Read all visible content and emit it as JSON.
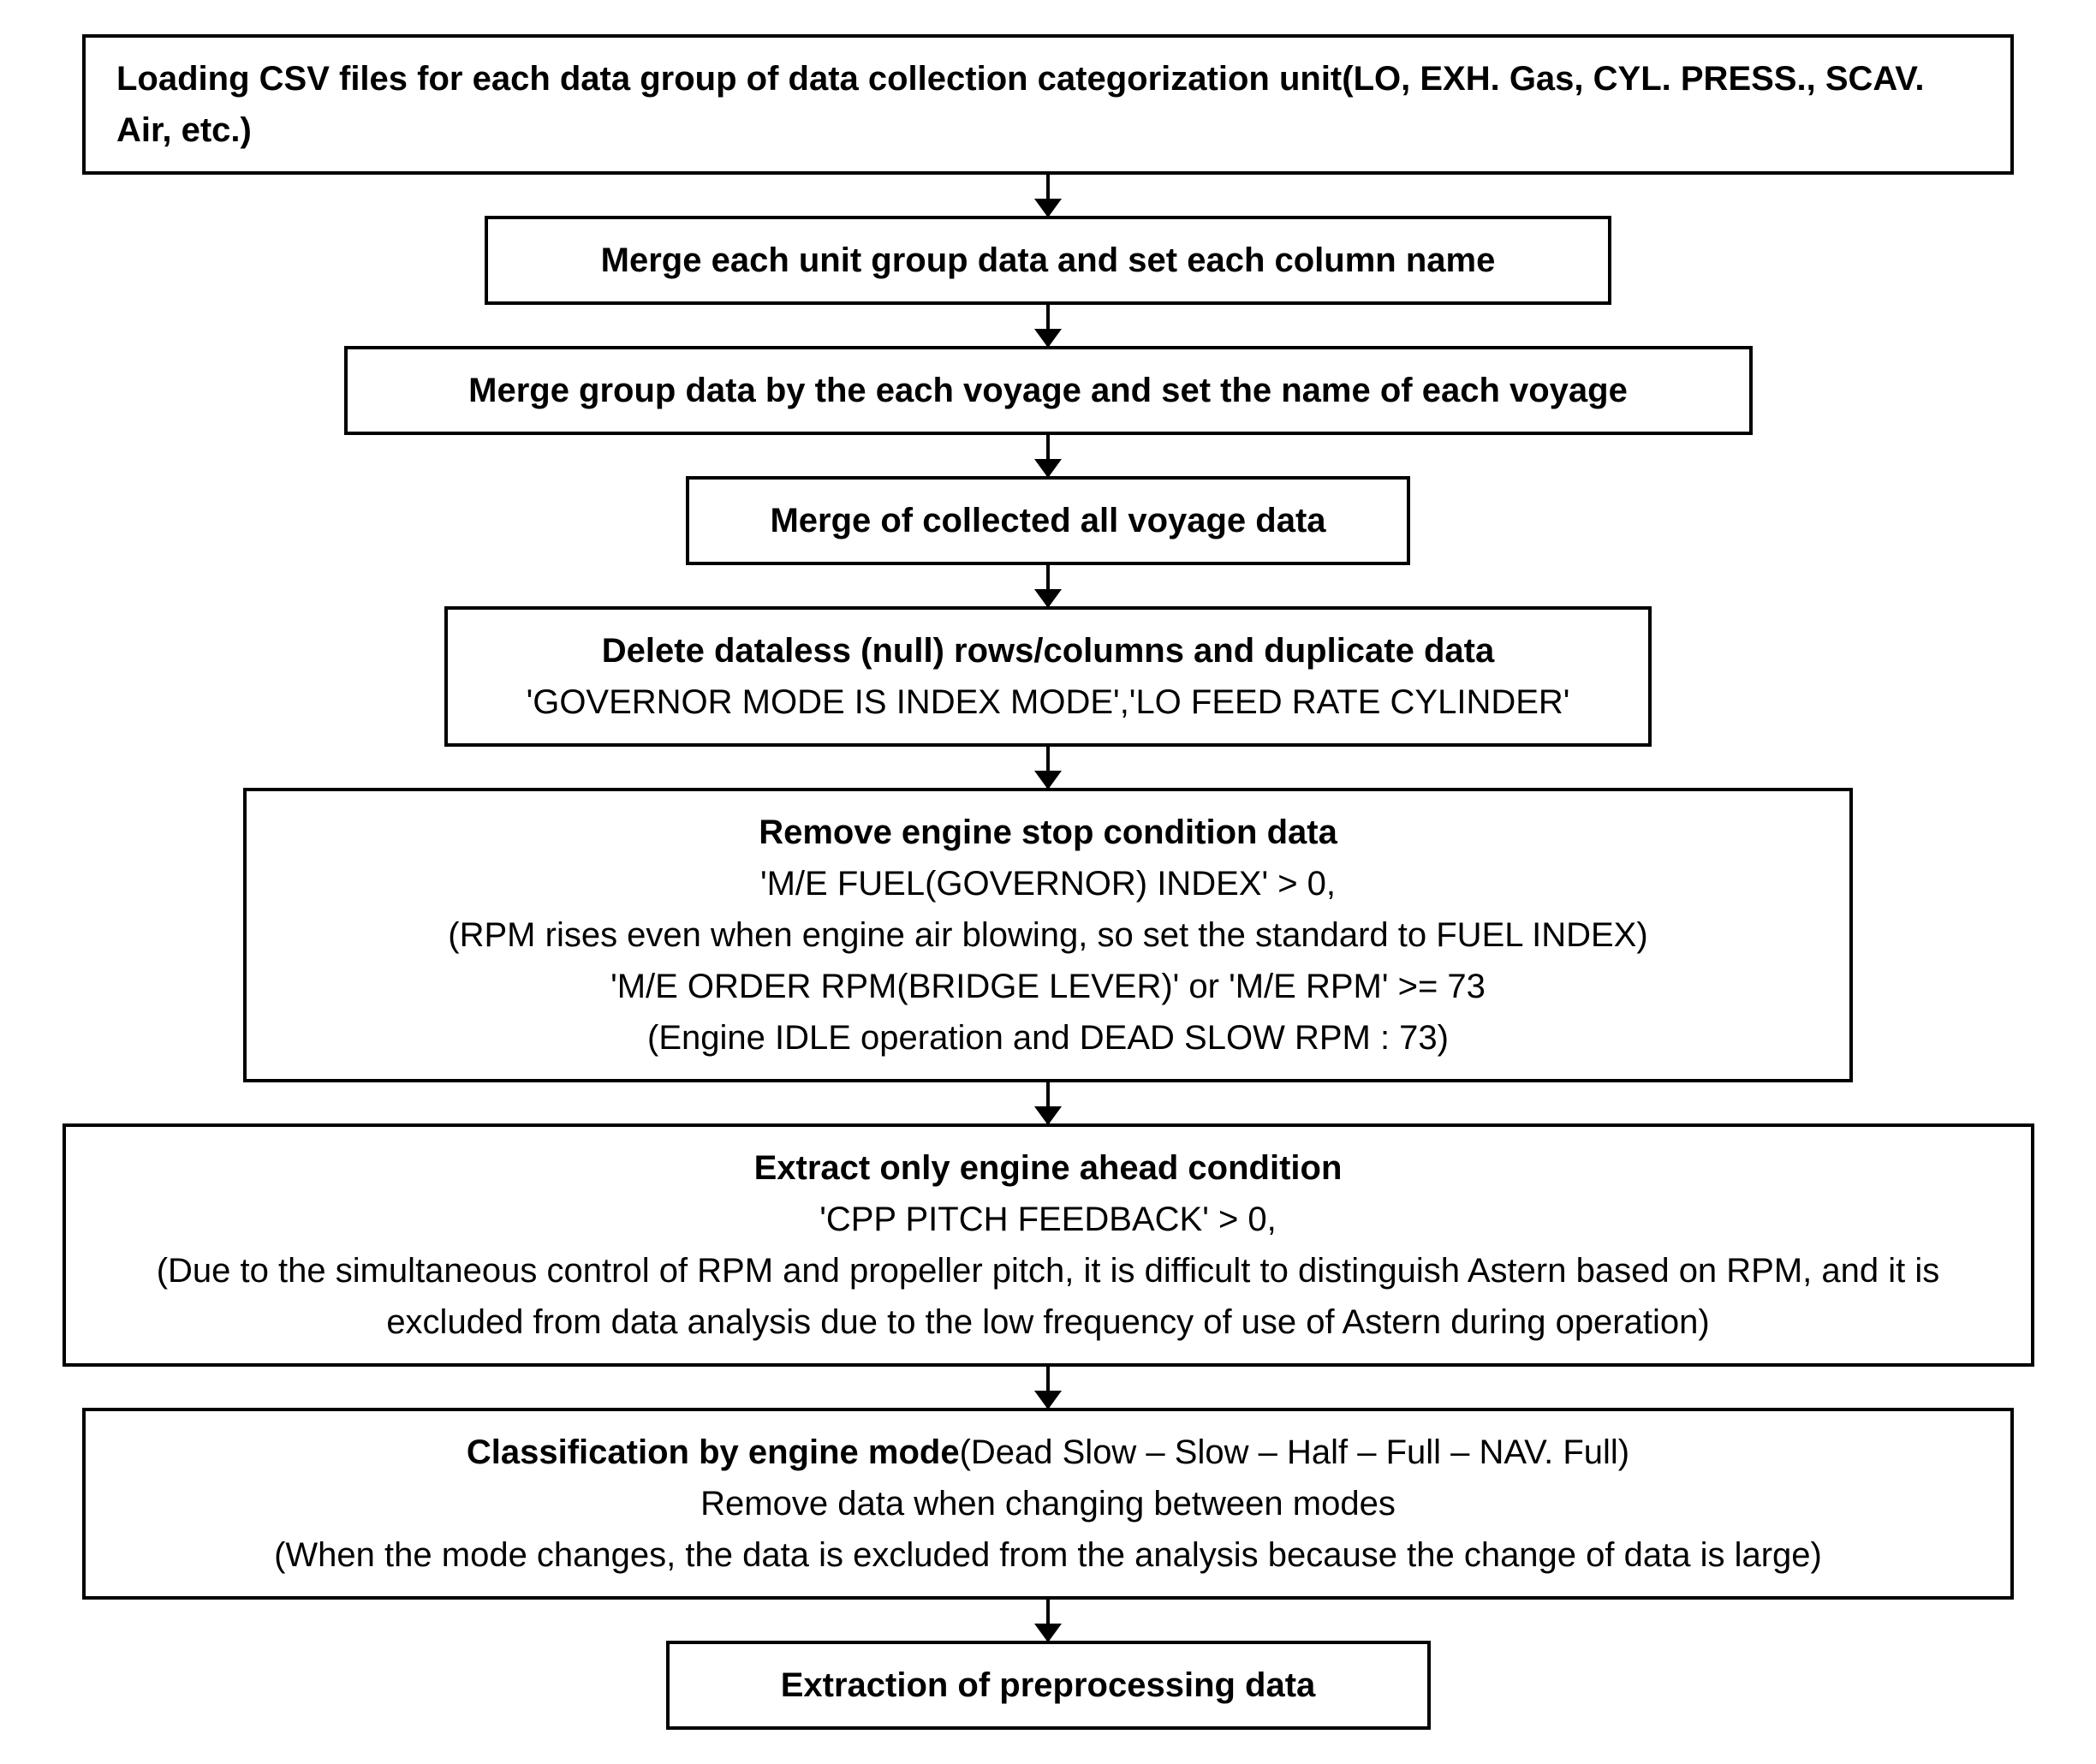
{
  "diagram": {
    "type": "flowchart",
    "background_color": "#ffffff",
    "border_color": "#000000",
    "border_width": 4,
    "text_color": "#000000",
    "font_family": "Malgun Gothic",
    "title_fontsize": 40,
    "body_fontsize": 40,
    "arrow_height": 48,
    "arrowhead_size": 22,
    "nodes": [
      {
        "id": "n1",
        "align": "left",
        "width_pct": 96,
        "lines": [
          {
            "bold": true,
            "text": "Loading CSV files for each data group of data collection categorization unit(LO, EXH. Gas, CYL. PRESS., SCAV. Air, etc.)"
          }
        ]
      },
      {
        "id": "n2",
        "align": "center",
        "width_pct": 56,
        "lines": [
          {
            "bold": true,
            "text": "Merge each unit group data and set each column name"
          }
        ]
      },
      {
        "id": "n3",
        "align": "center",
        "width_pct": 70,
        "lines": [
          {
            "bold": true,
            "text": "Merge group data by the each voyage and set the name of each voyage"
          }
        ]
      },
      {
        "id": "n4",
        "align": "center",
        "width_pct": 36,
        "lines": [
          {
            "bold": true,
            "text": "Merge of collected all voyage data"
          }
        ]
      },
      {
        "id": "n5",
        "align": "center",
        "width_pct": 60,
        "lines": [
          {
            "bold": true,
            "text": "Delete dataless (null) rows/columns and duplicate data"
          },
          {
            "bold": false,
            "text": "'GOVERNOR MODE IS INDEX MODE','LO FEED RATE CYLINDER'"
          }
        ]
      },
      {
        "id": "n6",
        "align": "center",
        "width_pct": 80,
        "lines": [
          {
            "bold": true,
            "text": "Remove engine stop condition data"
          },
          {
            "bold": false,
            "text": "'M/E FUEL(GOVERNOR) INDEX' > 0,"
          },
          {
            "bold": false,
            "text": "(RPM rises even when engine air blowing, so set the standard to FUEL INDEX)"
          },
          {
            "bold": false,
            "text": "'M/E ORDER RPM(BRIDGE LEVER)' or 'M/E RPM' >= 73"
          },
          {
            "bold": false,
            "text": "(Engine IDLE operation and DEAD SLOW RPM : 73)"
          }
        ]
      },
      {
        "id": "n7",
        "align": "center",
        "width_pct": 98,
        "lines": [
          {
            "bold": true,
            "text": "Extract only engine ahead condition"
          },
          {
            "bold": false,
            "text": "'CPP PITCH FEEDBACK' > 0,"
          },
          {
            "bold": false,
            "text": "(Due to the simultaneous control of RPM and propeller pitch, it is difficult to distinguish Astern based on RPM, and it is excluded from data analysis due to the low frequency of use of Astern during operation)"
          }
        ]
      },
      {
        "id": "n8",
        "align": "center",
        "width_pct": 96,
        "lines": [
          {
            "mixed": true,
            "bold_prefix": "Classification by engine mode",
            "normal_suffix": "(Dead Slow – Slow – Half – Full – NAV. Full)"
          },
          {
            "bold": false,
            "text": "Remove data when changing between modes"
          },
          {
            "bold": false,
            "text": "(When the mode changes, the data is excluded from the analysis because the change of data is large)"
          }
        ]
      },
      {
        "id": "n9",
        "align": "center",
        "width_pct": 38,
        "lines": [
          {
            "bold": true,
            "text": "Extraction of preprocessing data"
          }
        ]
      }
    ],
    "edges": [
      {
        "from": "n1",
        "to": "n2"
      },
      {
        "from": "n2",
        "to": "n3"
      },
      {
        "from": "n3",
        "to": "n4"
      },
      {
        "from": "n4",
        "to": "n5"
      },
      {
        "from": "n5",
        "to": "n6"
      },
      {
        "from": "n6",
        "to": "n7"
      },
      {
        "from": "n7",
        "to": "n8"
      },
      {
        "from": "n8",
        "to": "n9"
      }
    ]
  }
}
